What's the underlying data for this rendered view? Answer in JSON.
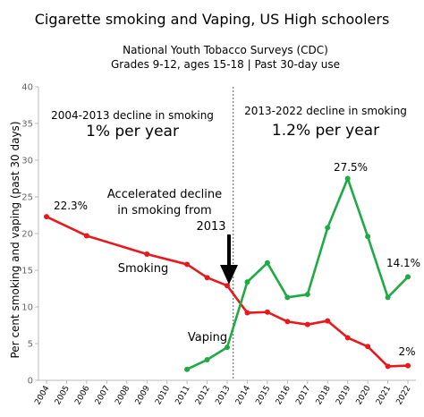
{
  "colors": {
    "smoking": "#e8191c",
    "vaping": "#1faa45",
    "axis": "#bbbbbb",
    "text": "#000000"
  },
  "chart_data": {
    "type": "line",
    "title": "Cigarette smoking and Vaping, US High schoolers",
    "subtitle_line1": "National Youth Tobacco Surveys (CDC)",
    "subtitle_line2": "Grades 9-12, ages 15-18 | Past 30-day use",
    "ylabel": "Per cent smoking and vaping (past 30 days)",
    "xlabel": "",
    "ylim": [
      0,
      40
    ],
    "yticks": [
      "0",
      "5",
      "10",
      "15",
      "20",
      "25",
      "30",
      "35",
      "40"
    ],
    "xticks": [
      "2004",
      "2005",
      "2006",
      "2007",
      "2008",
      "2009",
      "2010",
      "2011",
      "2012",
      "2013",
      "2014",
      "2015",
      "2016",
      "2017",
      "2018",
      "2019",
      "2020",
      "2021",
      "2022"
    ],
    "grid": false,
    "divider_year": 2013.3,
    "series": [
      {
        "name": "Smoking",
        "x": [
          2004,
          2006,
          2009,
          2011,
          2012,
          2013,
          2014,
          2015,
          2016,
          2017,
          2018,
          2019,
          2020,
          2021,
          2022
        ],
        "y": [
          22.3,
          19.7,
          17.2,
          15.8,
          14.0,
          12.9,
          9.2,
          9.3,
          8.0,
          7.6,
          8.1,
          5.8,
          4.6,
          1.9,
          2.0
        ]
      },
      {
        "name": "Vaping",
        "x": [
          2011,
          2012,
          2013,
          2014,
          2015,
          2016,
          2017,
          2018,
          2019,
          2020,
          2021,
          2022
        ],
        "y": [
          1.5,
          2.8,
          4.5,
          13.4,
          16.0,
          11.3,
          11.7,
          20.8,
          27.5,
          19.6,
          11.3,
          14.1
        ]
      }
    ],
    "period_left": {
      "label": "2004-2013 decline in smoking",
      "rate": "1% per year"
    },
    "period_right": {
      "label": "2013-2022 decline in smoking",
      "rate": "1.2% per year"
    },
    "annotation": {
      "line1": "Accelerated decline",
      "line2": "in smoking from",
      "line3": "2013"
    },
    "data_labels": {
      "smoking_start": "22.3%",
      "vaping_peak": "27.5%",
      "vaping_end": "14.1%",
      "smoking_end": "2%"
    }
  }
}
